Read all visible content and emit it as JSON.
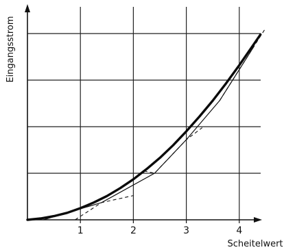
{
  "chart_data": {
    "type": "line",
    "title": "",
    "xlabel": "Scheitelwert",
    "ylabel": "Eingangsstrom",
    "x_ticks": [
      1,
      2,
      3,
      4
    ],
    "y_tick_labels": [],
    "xlim": [
      0,
      4.5
    ],
    "ylim": [
      0,
      4
    ],
    "grid": true,
    "legend": "none",
    "series": [
      {
        "style": "thick-solid",
        "x": [
          0,
          0.25,
          0.5,
          0.75,
          1.0,
          1.25,
          1.5,
          1.75,
          2.0,
          2.25,
          2.5,
          2.75,
          3.0,
          3.25,
          3.5,
          3.75,
          4.0,
          4.25,
          4.4
        ],
        "y": [
          0,
          0.03,
          0.08,
          0.15,
          0.25,
          0.37,
          0.51,
          0.68,
          0.87,
          1.09,
          1.33,
          1.6,
          1.9,
          2.22,
          2.56,
          2.93,
          3.32,
          3.73,
          3.98
        ]
      },
      {
        "style": "thin-solid",
        "x": [
          0.3,
          1.4,
          2.4,
          3.0,
          3.63,
          4.28
        ],
        "y": [
          0.0,
          0.37,
          1.0,
          1.72,
          2.56,
          3.73
        ]
      },
      {
        "style": "dashed",
        "x": [
          0.9,
          1.4,
          2.0
        ],
        "y": [
          0.0,
          0.37,
          0.52
        ]
      },
      {
        "style": "dashed",
        "x": [
          2.2,
          2.4,
          3.0,
          3.3
        ],
        "y": [
          1.05,
          1.0,
          1.72,
          1.98
        ]
      },
      {
        "style": "dashed",
        "x": [
          3.63,
          4.28,
          4.5
        ],
        "y": [
          2.56,
          3.73,
          4.12
        ]
      }
    ]
  }
}
